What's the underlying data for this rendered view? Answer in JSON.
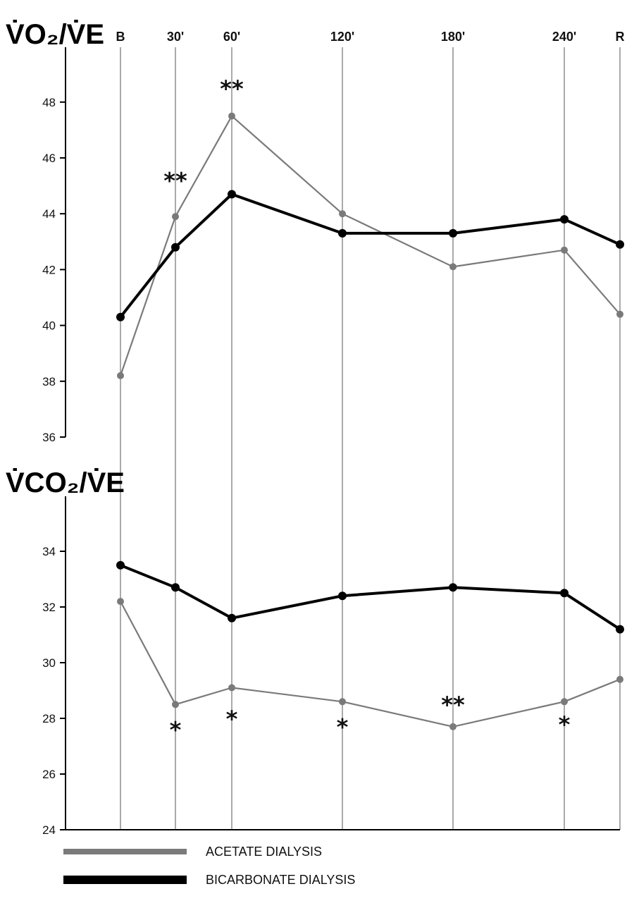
{
  "chart_data": {
    "type": "line",
    "x": [
      "B",
      "30'",
      "60'",
      "120'",
      "180'",
      "240'",
      "R"
    ],
    "legend": [
      {
        "label": "ACETATE DIALYSIS",
        "color": "#808080"
      },
      {
        "label": "BICARBONATE DIALYSIS",
        "color": "#000000"
      }
    ],
    "panels": [
      {
        "title": "V̇O₂/V̇E",
        "ylim": [
          36,
          49
        ],
        "yticks": [
          36,
          38,
          40,
          42,
          44,
          46,
          48
        ],
        "series": [
          {
            "name": "ACETATE DIALYSIS",
            "values": [
              38.2,
              43.9,
              47.5,
              44.0,
              42.1,
              42.7,
              40.4
            ]
          },
          {
            "name": "BICARBONATE DIALYSIS",
            "values": [
              40.3,
              42.8,
              44.7,
              43.3,
              43.3,
              43.8,
              42.9
            ]
          }
        ],
        "annotations": [
          {
            "x": "30'",
            "y": 44.9,
            "text": "**"
          },
          {
            "x": "60'",
            "y": 48.2,
            "text": "**"
          }
        ]
      },
      {
        "title": "V̇CO₂/V̇E",
        "ylim": [
          24,
          36
        ],
        "yticks": [
          24,
          26,
          28,
          30,
          32,
          34
        ],
        "series": [
          {
            "name": "ACETATE DIALYSIS",
            "values": [
              32.2,
              28.5,
              29.1,
              28.6,
              27.7,
              28.6,
              29.4
            ]
          },
          {
            "name": "BICARBONATE DIALYSIS",
            "values": [
              33.5,
              32.7,
              31.6,
              32.4,
              32.7,
              32.5,
              31.2
            ]
          }
        ],
        "annotations": [
          {
            "x": "30'",
            "y": 27.3,
            "text": "*"
          },
          {
            "x": "60'",
            "y": 27.7,
            "text": "*"
          },
          {
            "x": "120'",
            "y": 27.4,
            "text": "*"
          },
          {
            "x": "180'",
            "y": 28.2,
            "text": "**"
          },
          {
            "x": "240'",
            "y": 27.5,
            "text": "*"
          }
        ]
      }
    ]
  }
}
